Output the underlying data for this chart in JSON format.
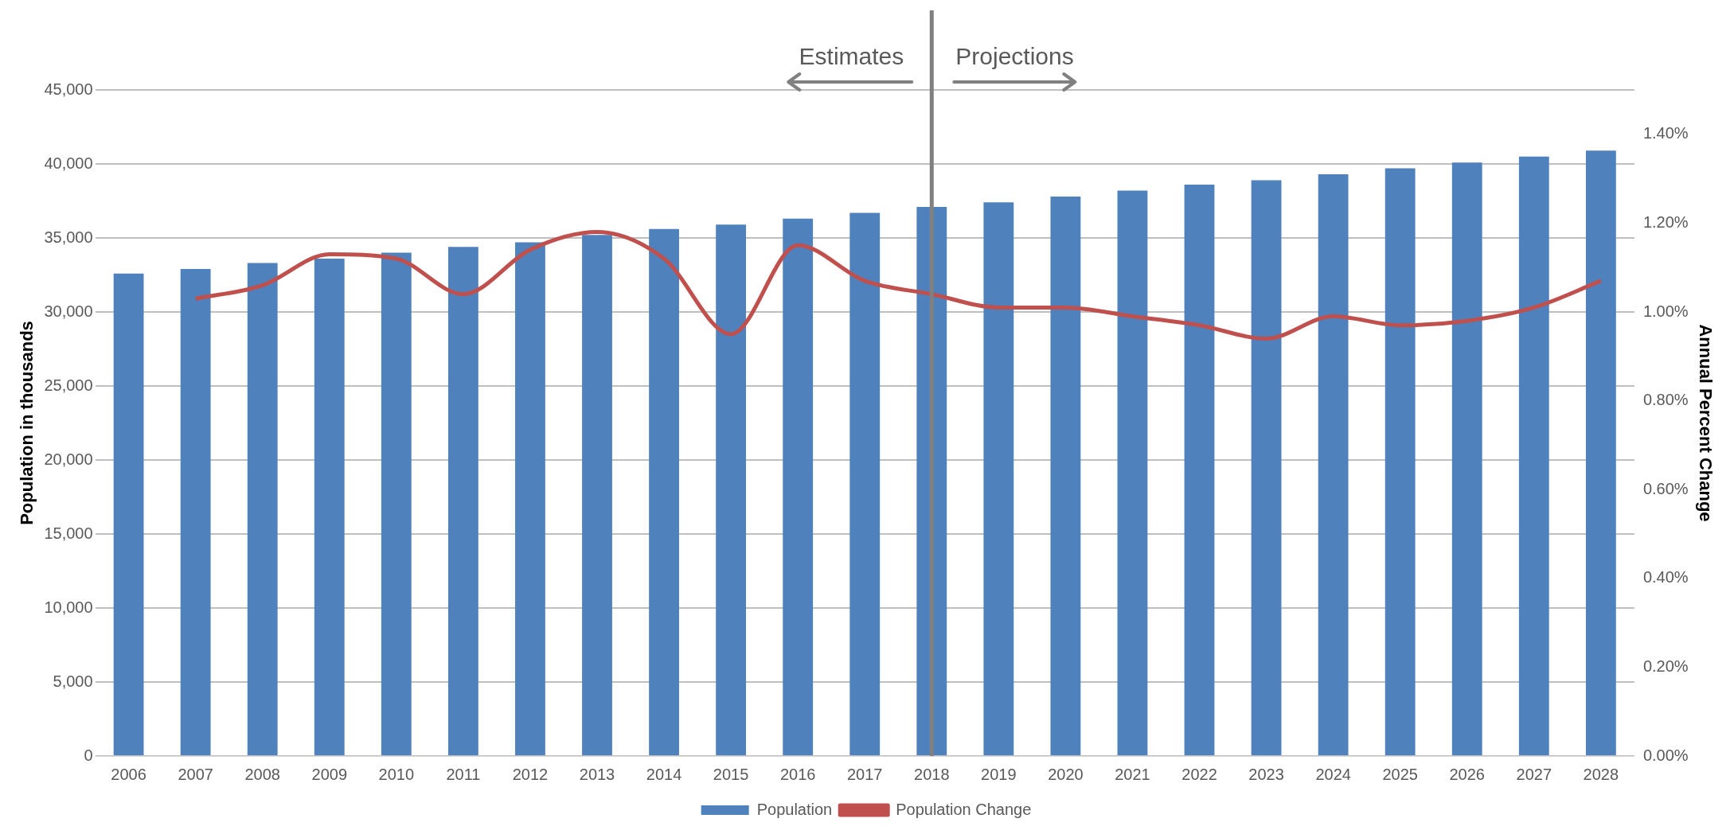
{
  "chart_data": {
    "type": "bar",
    "categories": [
      "2006",
      "2007",
      "2008",
      "2009",
      "2010",
      "2011",
      "2012",
      "2013",
      "2014",
      "2015",
      "2016",
      "2017",
      "2018",
      "2019",
      "2020",
      "2021",
      "2022",
      "2023",
      "2024",
      "2025",
      "2026",
      "2027",
      "2028"
    ],
    "series": [
      {
        "name": "Population",
        "color": "#4f81bd",
        "values": [
          32600,
          32900,
          33300,
          33600,
          34000,
          34400,
          34700,
          35200,
          35600,
          35900,
          36300,
          36700,
          37100,
          37400,
          37800,
          38200,
          38600,
          38900,
          39300,
          39700,
          40100,
          40500,
          40900
        ]
      },
      {
        "name": "Population Change",
        "type": "line",
        "axis": "y2",
        "color": "#c0504d",
        "values": [
          null,
          1.03,
          1.06,
          1.13,
          1.12,
          1.04,
          1.14,
          1.18,
          1.12,
          0.95,
          1.15,
          1.07,
          1.04,
          1.01,
          1.01,
          0.99,
          0.97,
          0.94,
          0.99,
          0.97,
          0.98,
          1.01,
          1.07
        ]
      }
    ],
    "ylabel": "Population in thousands",
    "y2label": "Annual Percent Change",
    "ylim": [
      0,
      45000
    ],
    "yticks": [
      {
        "value": 0,
        "label": "0"
      },
      {
        "value": 5000,
        "label": "5,000"
      },
      {
        "value": 10000,
        "label": "10,000"
      },
      {
        "value": 15000,
        "label": "15,000"
      },
      {
        "value": 20000,
        "label": "20,000"
      },
      {
        "value": 25000,
        "label": "25,000"
      },
      {
        "value": 30000,
        "label": "30,000"
      },
      {
        "value": 35000,
        "label": "35,000"
      },
      {
        "value": 40000,
        "label": "40,000"
      },
      {
        "value": 45000,
        "label": "45,000"
      }
    ],
    "y2lim": [
      0,
      1.5
    ],
    "y2ticks": [
      {
        "value": 0,
        "label": "0.00%"
      },
      {
        "value": 0.2,
        "label": "0.20%"
      },
      {
        "value": 0.4,
        "label": "0.40%"
      },
      {
        "value": 0.6,
        "label": "0.60%"
      },
      {
        "value": 0.8,
        "label": "0.80%"
      },
      {
        "value": 1.0,
        "label": "1.00%"
      },
      {
        "value": 1.2,
        "label": "1.20%"
      },
      {
        "value": 1.4,
        "label": "1.40%"
      }
    ],
    "ref_lines": [
      {
        "axis": "x",
        "value": "2018",
        "color": "#808080"
      }
    ],
    "annotations": [
      "Estimates",
      "Projections"
    ],
    "grid": "y",
    "legend": "bottom",
    "marker": "none"
  }
}
